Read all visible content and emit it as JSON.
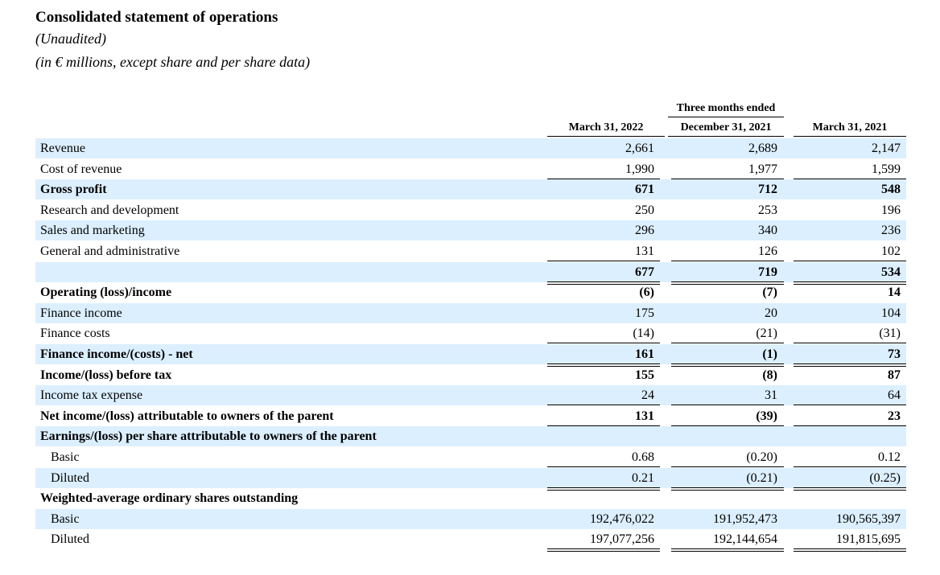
{
  "header": {
    "title": "Consolidated statement of operations",
    "unaudited": "(Unaudited)",
    "units": "(in € millions, except share and per share data)"
  },
  "columns": {
    "group": "Three months ended",
    "c1": "March 31, 2022",
    "c2": "December 31, 2021",
    "c3": "March 31, 2021"
  },
  "rows": [
    {
      "label": "Revenue",
      "v": [
        "2,661",
        "2,689",
        "2,147"
      ]
    },
    {
      "label": "Cost of revenue",
      "v": [
        "1,990",
        "1,977",
        "1,599"
      ]
    },
    {
      "label": "Gross profit",
      "v": [
        "671",
        "712",
        "548"
      ]
    },
    {
      "label": "Research and development",
      "v": [
        "250",
        "253",
        "196"
      ]
    },
    {
      "label": "Sales and marketing",
      "v": [
        "296",
        "340",
        "236"
      ]
    },
    {
      "label": "General and administrative",
      "v": [
        "131",
        "126",
        "102"
      ]
    },
    {
      "label": "",
      "v": [
        "677",
        "719",
        "534"
      ]
    },
    {
      "label": "Operating (loss)/income",
      "v": [
        "(6)",
        "(7)",
        "14"
      ]
    },
    {
      "label": "Finance income",
      "v": [
        "175",
        "20",
        "104"
      ]
    },
    {
      "label": "Finance costs",
      "v": [
        "(14)",
        "(21)",
        "(31)"
      ]
    },
    {
      "label": "Finance income/(costs) - net",
      "v": [
        "161",
        "(1)",
        "73"
      ]
    },
    {
      "label": "Income/(loss) before tax",
      "v": [
        "155",
        "(8)",
        "87"
      ]
    },
    {
      "label": "Income tax expense",
      "v": [
        "24",
        "31",
        "64"
      ]
    },
    {
      "label": "Net income/(loss) attributable to owners of the parent",
      "v": [
        "131",
        "(39)",
        "23"
      ]
    },
    {
      "label": "Earnings/(loss) per share attributable to owners of the parent",
      "v": [
        "",
        "",
        ""
      ]
    },
    {
      "label": "Basic",
      "v": [
        "0.68",
        "(0.20)",
        "0.12"
      ]
    },
    {
      "label": "Diluted",
      "v": [
        "0.21",
        "(0.21)",
        "(0.25)"
      ]
    },
    {
      "label": "Weighted-average ordinary shares outstanding",
      "v": [
        "",
        "",
        ""
      ]
    },
    {
      "label": "Basic",
      "v": [
        "192,476,022",
        "191,952,473",
        "190,565,397"
      ]
    },
    {
      "label": "Diluted",
      "v": [
        "197,077,256",
        "192,144,654",
        "191,815,695"
      ]
    }
  ]
}
